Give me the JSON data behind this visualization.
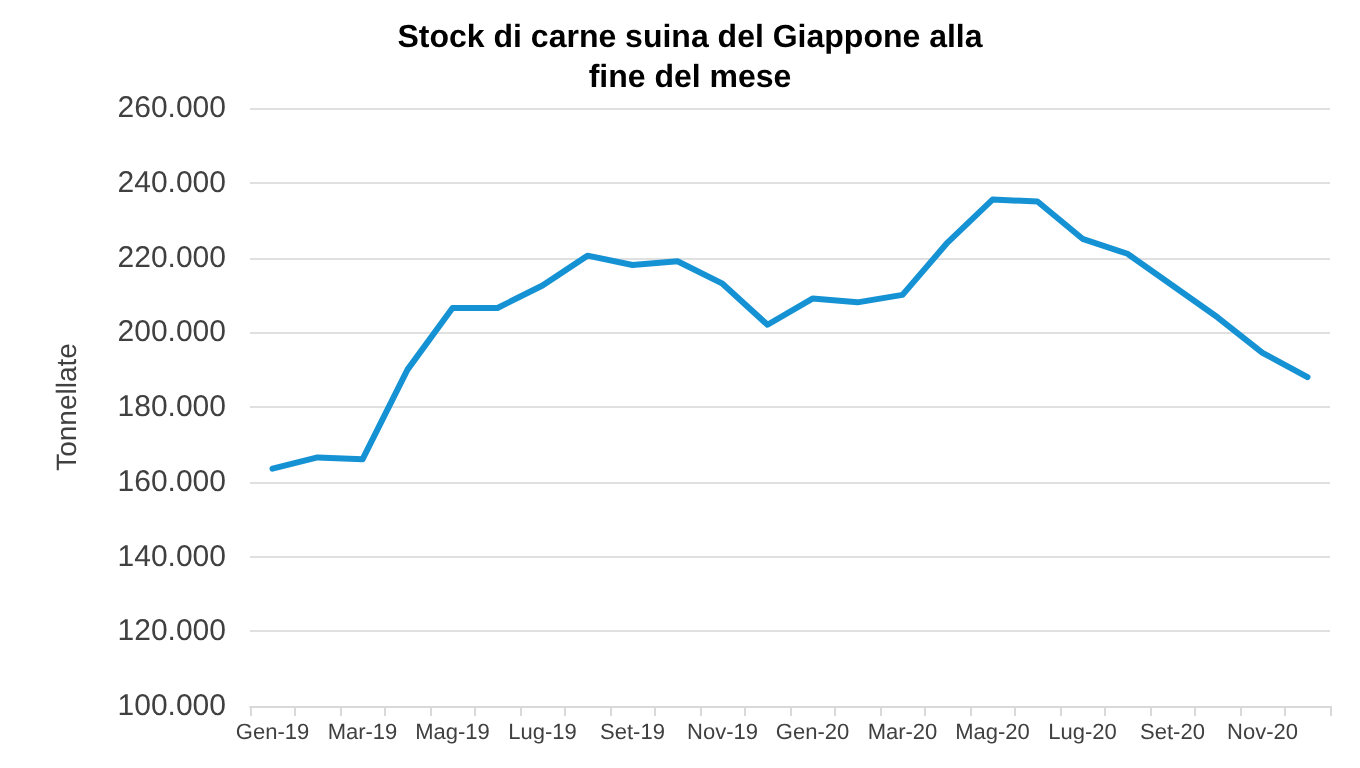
{
  "chart_data": {
    "type": "line",
    "title": "Stock di carne suina del Giappone alla\nfine del mese",
    "ylabel": "Tonnellate",
    "categories": [
      "Gen-19",
      null,
      "Mar-19",
      null,
      "Mag-19",
      null,
      "Lug-19",
      null,
      "Set-19",
      null,
      "Nov-19",
      null,
      "Gen-20",
      null,
      "Mar-20",
      null,
      "Mag-20",
      null,
      "Lug-20",
      null,
      "Set-20",
      null,
      "Nov-20",
      null
    ],
    "series": [
      {
        "color": "#1592d3",
        "values": [
          163500,
          166500,
          166000,
          190000,
          206500,
          206500,
          212500,
          220500,
          218000,
          219000,
          213000,
          202000,
          209000,
          208000,
          210000,
          224000,
          235500,
          235000,
          225000,
          221000,
          212500,
          204000,
          194500,
          188000
        ]
      }
    ],
    "ylim": [
      100000,
      260000
    ],
    "yticks": [
      {
        "value": 100000,
        "label": "100.000"
      },
      {
        "value": 120000,
        "label": "120.000"
      },
      {
        "value": 140000,
        "label": "140.000"
      },
      {
        "value": 160000,
        "label": "160.000"
      },
      {
        "value": 180000,
        "label": "180.000"
      },
      {
        "value": 200000,
        "label": "200.000"
      },
      {
        "value": 220000,
        "label": "220.000"
      },
      {
        "value": 240000,
        "label": "240.000"
      },
      {
        "value": 260000,
        "label": "260.000"
      }
    ],
    "grid": "y",
    "marker": "none",
    "line_style": "solid"
  }
}
